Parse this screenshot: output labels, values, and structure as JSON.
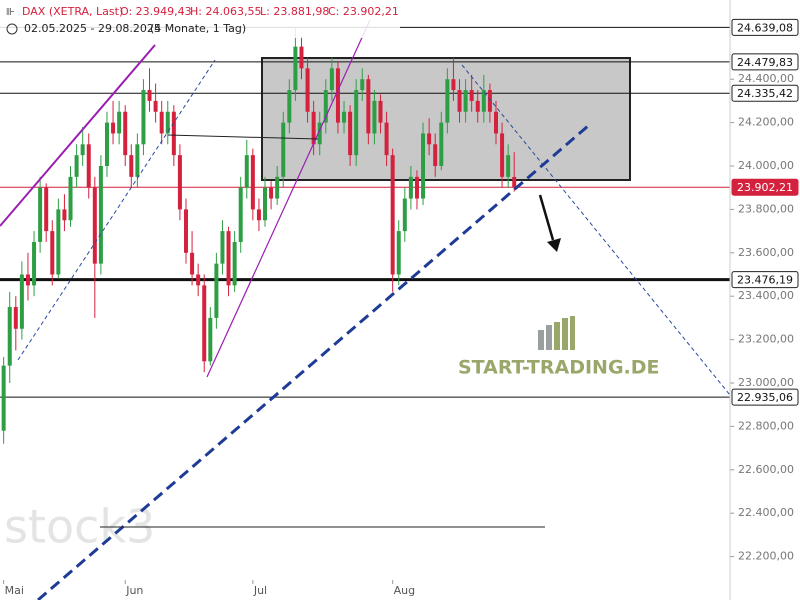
{
  "header": {
    "instrument": "DAX (XETRA, Last)",
    "open": "O: 23.949,43",
    "high": "H: 24.063,55",
    "low": "L: 23.881,98",
    "close": "C: 23.902,21",
    "range": "02.05.2025 - 29.08.2025",
    "span": "(4 Monate, 1 Tag)"
  },
  "watermarks": {
    "site": "START-TRADING.DE",
    "brand": "stock3"
  },
  "chart_data": {
    "type": "candlestick",
    "up_color": "#2e9e45",
    "down_color": "#d4213d",
    "xlim": [
      -0.6,
      119.5
    ],
    "ylim": [
      22000,
      24765
    ],
    "xticks": [
      {
        "value": 0,
        "label": "Mai"
      },
      {
        "value": 20,
        "label": "Jun"
      },
      {
        "value": 41,
        "label": "Jul"
      },
      {
        "value": 64,
        "label": "Aug"
      }
    ],
    "yticks": [
      {
        "value": 22200,
        "label": "22.200,00"
      },
      {
        "value": 22400,
        "label": "22.400,00"
      },
      {
        "value": 22600,
        "label": "22.600,00"
      },
      {
        "value": 22800,
        "label": "22.800,00"
      },
      {
        "value": 23000,
        "label": "23.000,00"
      },
      {
        "value": 23200,
        "label": "23.200,00"
      },
      {
        "value": 23400,
        "label": "23.400,00"
      },
      {
        "value": 23600,
        "label": "23.600,00"
      },
      {
        "value": 23800,
        "label": "23.800,00"
      },
      {
        "value": 24000,
        "label": "24.000,00"
      },
      {
        "value": 24200,
        "label": "24.200,00"
      },
      {
        "value": 24400,
        "label": "24.400,00"
      }
    ],
    "levels": [
      {
        "value": 24639.08,
        "label": "24.639,08",
        "color": "#111111",
        "width": 1
      },
      {
        "value": 24479.83,
        "label": "24.479,83",
        "color": "#111111",
        "width": 1
      },
      {
        "value": 24335.42,
        "label": "24.335,42",
        "color": "#111111",
        "width": 1
      },
      {
        "value": 23902.21,
        "label": "23.902,21",
        "color": "#d4213d",
        "width": 1
      },
      {
        "value": 23476.19,
        "label": "23.476,19",
        "color": "#111111",
        "width": 3
      },
      {
        "value": 22935.06,
        "label": "22.935,06",
        "color": "#111111",
        "width": 1
      }
    ],
    "open": [
      22780,
      23080,
      23350,
      23250,
      23500,
      23450,
      23650,
      23900,
      23700,
      23500,
      23800,
      23750,
      23950,
      24050,
      24100,
      23900,
      23550,
      24000,
      24200,
      24150,
      24250,
      24050,
      23950,
      24100,
      24350,
      24300,
      24250,
      24150,
      24250,
      24050,
      23800,
      23600,
      23500,
      23450,
      23100,
      23300,
      23550,
      23700,
      23450,
      23650,
      23900,
      24050,
      23800,
      23750,
      23900,
      23850,
      23950,
      24200,
      24350,
      24550,
      24450,
      24250,
      24100,
      24200,
      24350,
      24450,
      24200,
      24250,
      24050,
      24350,
      24400,
      24150,
      24300,
      24200,
      24050,
      23500,
      23700,
      23850,
      23950,
      23850,
      24150,
      24100,
      24000,
      24200,
      24400,
      24350,
      24250,
      24350,
      24300,
      24250,
      24350,
      24250,
      24150,
      23950,
      23949.43
    ],
    "high": [
      23120,
      23420,
      23400,
      23560,
      23600,
      23700,
      23950,
      23920,
      23750,
      23850,
      23870,
      24000,
      24100,
      24180,
      24150,
      23950,
      24050,
      24250,
      24300,
      24300,
      24280,
      24100,
      24150,
      24400,
      24450,
      24380,
      24300,
      24300,
      24280,
      24100,
      23850,
      23700,
      23550,
      23500,
      23350,
      23600,
      23750,
      23720,
      23700,
      23950,
      24120,
      24080,
      23850,
      23950,
      23930,
      24000,
      24250,
      24400,
      24639,
      24600,
      24500,
      24300,
      24250,
      24400,
      24500,
      24480,
      24300,
      24280,
      24400,
      24450,
      24420,
      24350,
      24330,
      24250,
      24080,
      23750,
      23900,
      24000,
      23980,
      24200,
      24220,
      24150,
      24250,
      24450,
      24500,
      24400,
      24400,
      24420,
      24350,
      24420,
      24380,
      24300,
      24200,
      24100,
      24063.55
    ],
    "low": [
      22720,
      23000,
      23150,
      23200,
      23380,
      23400,
      23600,
      23650,
      23450,
      23480,
      23700,
      23720,
      23900,
      24000,
      23850,
      23300,
      23500,
      23950,
      24100,
      24100,
      24000,
      23900,
      23900,
      24050,
      24250,
      24200,
      24100,
      24100,
      24000,
      23750,
      23550,
      23450,
      23400,
      23050,
      23080,
      23250,
      23500,
      23400,
      23420,
      23600,
      23850,
      23750,
      23700,
      23720,
      23800,
      23820,
      23900,
      24150,
      24300,
      24400,
      24200,
      24050,
      24050,
      24150,
      24300,
      24150,
      24150,
      24000,
      24000,
      24300,
      24100,
      24100,
      24150,
      24000,
      23420,
      23450,
      23650,
      23800,
      23800,
      23820,
      24050,
      23950,
      23980,
      24150,
      24300,
      24200,
      24200,
      24250,
      24200,
      24200,
      24200,
      24100,
      23900,
      23900,
      23881.98
    ],
    "close": [
      23080,
      23350,
      23250,
      23500,
      23450,
      23650,
      23900,
      23700,
      23500,
      23800,
      23750,
      23950,
      24050,
      24100,
      23900,
      23550,
      24000,
      24200,
      24150,
      24250,
      24050,
      23950,
      24100,
      24350,
      24300,
      24250,
      24150,
      24250,
      24050,
      23800,
      23600,
      23500,
      23450,
      23100,
      23300,
      23550,
      23700,
      23450,
      23650,
      23900,
      24050,
      23800,
      23750,
      23900,
      23850,
      23950,
      24200,
      24350,
      24550,
      24450,
      24250,
      24100,
      24200,
      24350,
      24450,
      24200,
      24250,
      24050,
      24350,
      24400,
      24150,
      24300,
      24200,
      24050,
      23500,
      23700,
      23850,
      23950,
      23850,
      24150,
      24100,
      24000,
      24200,
      24400,
      24350,
      24250,
      24350,
      24300,
      24250,
      24350,
      24250,
      24150,
      23950,
      24050,
      23902.21
    ]
  }
}
